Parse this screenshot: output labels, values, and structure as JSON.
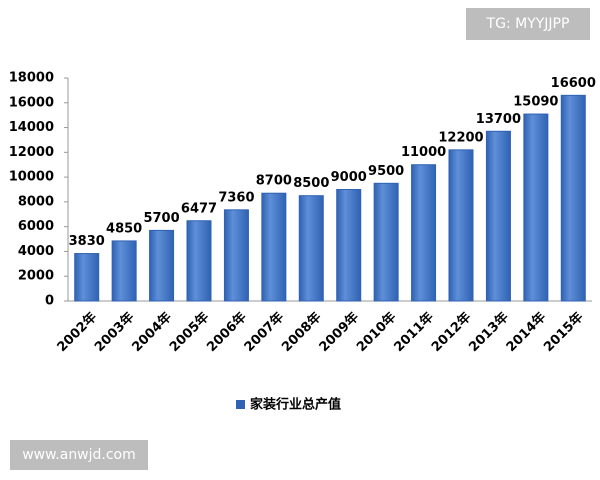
{
  "watermarks": [
    "TG: MYYJJPP",
    "www.anwjd.com"
  ],
  "chart_data": {
    "type": "bar",
    "categories": [
      "2002年",
      "2003年",
      "2004年",
      "2005年",
      "2006年",
      "2007年",
      "2008年",
      "2009年",
      "2010年",
      "2011年",
      "2012年",
      "2013年",
      "2014年",
      "2015年"
    ],
    "series": [
      {
        "name": "家装行业总产值",
        "color": "#2f62b3",
        "values": [
          3830,
          4850,
          5700,
          6477,
          7360,
          8700,
          8500,
          9000,
          9500,
          11000,
          12200,
          13700,
          15090,
          16600
        ]
      }
    ],
    "ylim": [
      0,
      18000
    ],
    "yticks": [
      0,
      2000,
      4000,
      6000,
      8000,
      10000,
      12000,
      14000,
      16000,
      18000
    ],
    "legend": "bottom"
  }
}
